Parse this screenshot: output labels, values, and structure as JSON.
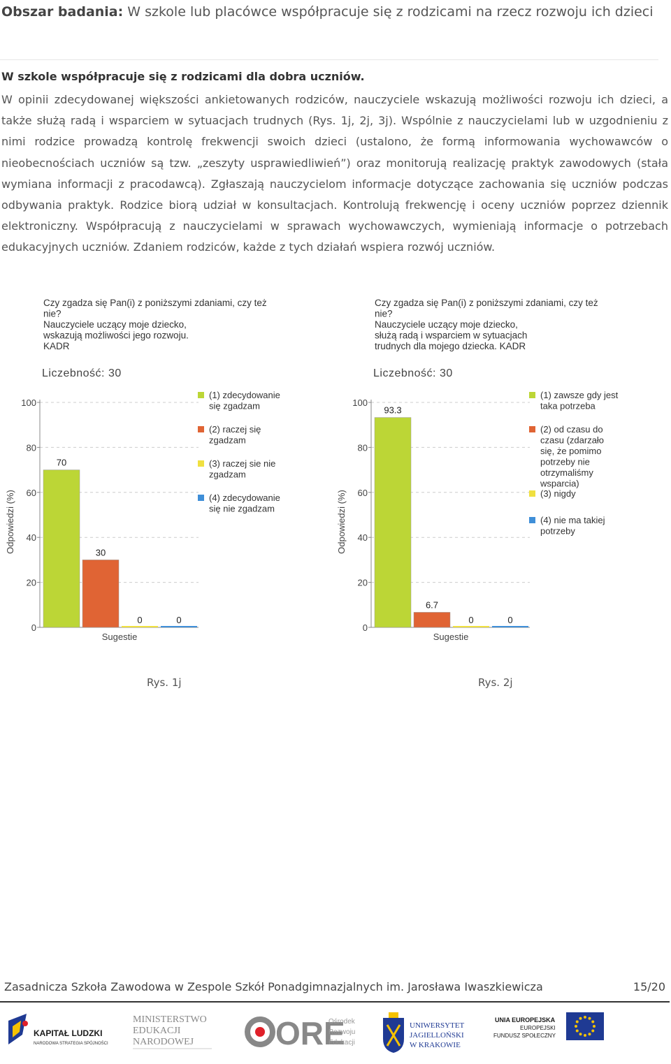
{
  "heading": {
    "label": "Obszar badania:",
    "text": "W szkole lub placówce współpracuje się z rodzicami na rzecz rozwoju ich dzieci"
  },
  "subheading": "W szkole współpracuje się z rodzicami dla dobra uczniów.",
  "body_text": "W opinii zdecydowanej większości ankietowanych rodziców, nauczyciele wskazują możliwości rozwoju ich dzieci, a także służą radą i wsparciem w sytuacjach trudnych (Rys. 1j, 2j, 3j). Wspólnie z nauczycielami lub w uzgodnieniu z nimi rodzice prowadzą kontrolę frekwencji swoich dzieci (ustalono, że formą informowania wychowawców o nieobecnościach uczniów są tzw. „zeszyty usprawiedliwień”) oraz monitorują realizację praktyk zawodowych (stała wymiana informacji z pracodawcą). Zgłaszają nauczycielom informacje dotyczące zachowania się uczniów podczas odbywania praktyk. Rodzice biorą udział w konsultacjach. Kontrolują frekwencję i oceny uczniów poprzez dziennik elektroniczny. Współpracują z nauczycielami w sprawach wychowawczych, wymieniają informacje o potrzebach edukacyjnych uczniów. Zdaniem rodziców, każde z tych działań wspiera rozwój uczniów.",
  "chart_data": [
    {
      "type": "bar",
      "title_lines": [
        "Czy zgadza się Pan(i) z poniższymi zdaniami, czy też",
        "nie?",
        "Nauczyciele uczący moje dziecko,",
        "wskazują możliwości jego rozwoju.",
        "KADR"
      ],
      "count_label": "Liczebność: 30",
      "ylabel": "Odpowiedzi (%)",
      "xlabel": "Sugestie",
      "ylim": [
        0,
        100
      ],
      "yticks": [
        0,
        20,
        40,
        60,
        80,
        100
      ],
      "grid": true,
      "legend_position": "right",
      "series": [
        {
          "name_lines": [
            "(1) zdecydowanie",
            "się zgadzam"
          ],
          "value": 70,
          "label": "70",
          "color": "#bcd636"
        },
        {
          "name_lines": [
            "(2) raczej się",
            "zgadzam"
          ],
          "value": 30,
          "label": "30",
          "color": "#e06434"
        },
        {
          "name_lines": [
            "(3) raczej sie nie",
            "zgadzam"
          ],
          "value": 0,
          "label": "0",
          "color": "#f0e040"
        },
        {
          "name_lines": [
            "(4) zdecydowanie",
            "się nie zgadzam"
          ],
          "value": 0,
          "label": "0",
          "color": "#3f8fd8"
        }
      ],
      "caption": "Rys. 1j"
    },
    {
      "type": "bar",
      "title_lines": [
        "Czy zgadza się Pan(i) z poniższymi zdaniami, czy też",
        "nie?",
        "Nauczyciele uczący moje dziecko,",
        "służą radą i wsparciem w sytuacjach",
        "trudnych dla mojego dziecka. KADR"
      ],
      "count_label": "Liczebność: 30",
      "ylabel": "Odpowiedzi (%)",
      "xlabel": "Sugestie",
      "ylim": [
        0,
        100
      ],
      "yticks": [
        0,
        20,
        40,
        60,
        80,
        100
      ],
      "grid": true,
      "legend_position": "right",
      "series": [
        {
          "name_lines": [
            "(1) zawsze gdy jest",
            "taka potrzeba"
          ],
          "value": 93.3,
          "label": "93.3",
          "color": "#bcd636"
        },
        {
          "name_lines": [
            "(2) od czasu do",
            "czasu (zdarzało",
            "się, że pomimo",
            "potrzeby nie",
            "otrzymaliśmy",
            "wsparcia)"
          ],
          "value": 6.7,
          "label": "6.7",
          "color": "#e06434"
        },
        {
          "name_lines": [
            "(3) nigdy"
          ],
          "value": 0,
          "label": "0",
          "color": "#f0e040"
        },
        {
          "name_lines": [
            "(4) nie ma takiej",
            "potrzeby"
          ],
          "value": 0,
          "label": "0",
          "color": "#3f8fd8"
        }
      ],
      "caption": "Rys. 2j"
    }
  ],
  "footer": {
    "school": "Zasadnicza Szkoła Zawodowa w Zespole Szkół Ponadgimnazjalnych im. Jarosława Iwaszkiewicza",
    "page": "15/20"
  },
  "logos": {
    "kapital": {
      "name": "KAPITAŁ LUDZKI",
      "sub": "NARODOWA STRATEGIA SPÓJNOŚCI"
    },
    "men": {
      "lines": [
        "MINISTERSTWO",
        "EDUKACJI",
        "NARODOWEJ"
      ]
    },
    "ore": {
      "mark": "ORE",
      "lines": [
        "Ośrodek",
        "Rozwoju",
        "Edukacji"
      ]
    },
    "uj": {
      "lines": [
        "UNIWERSYTET",
        "JAGIELLOŃSKI",
        "W KRAKOWIE"
      ]
    },
    "ue": {
      "lines": [
        "UNIA EUROPEJSKA",
        "EUROPEJSKI",
        "FUNDUSZ SPOŁECZNY"
      ]
    }
  }
}
